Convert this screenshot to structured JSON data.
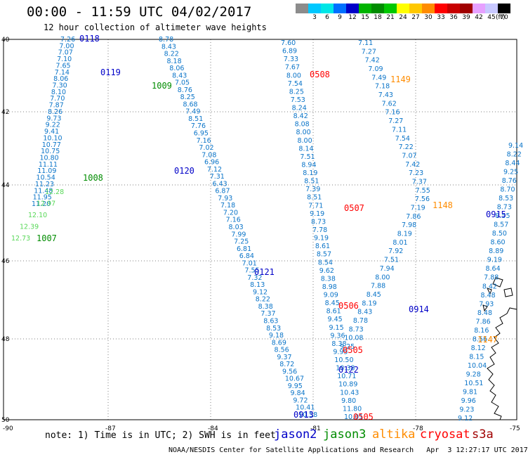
{
  "header": {
    "title": "00:00 - 11:59 UTC 04/02/2017",
    "subtitle": "12 hour collection of altimeter wave heights"
  },
  "colorbar": {
    "unit": "(ft)",
    "levels": [
      {
        "label": "",
        "color": "#8c8c8c"
      },
      {
        "label": "3",
        "color": "#00c8ff"
      },
      {
        "label": "6",
        "color": "#00e6e6"
      },
      {
        "label": "9",
        "color": "#0070ff"
      },
      {
        "label": "12",
        "color": "#0000c8"
      },
      {
        "label": "15",
        "color": "#00b400"
      },
      {
        "label": "18",
        "color": "#008c00"
      },
      {
        "label": "21",
        "color": "#00c800"
      },
      {
        "label": "24",
        "color": "#ffff00"
      },
      {
        "label": "27",
        "color": "#ffc800"
      },
      {
        "label": "30",
        "color": "#ff8c00"
      },
      {
        "label": "33",
        "color": "#ff0000"
      },
      {
        "label": "36",
        "color": "#c80000"
      },
      {
        "label": "39",
        "color": "#a00000"
      },
      {
        "label": "42",
        "color": "#e6a0ff"
      },
      {
        "label": "45",
        "color": "#c8c8ff"
      },
      {
        "label": "70",
        "color": "#000000"
      }
    ]
  },
  "axes": {
    "lat_ticks": [
      "40",
      "42",
      "44",
      "46",
      "48",
      "50"
    ],
    "lon_ticks": [
      "-90",
      "-87",
      "-84",
      "-81",
      "-78",
      "-75"
    ]
  },
  "tracks": [
    {
      "color": "#0000c8",
      "labels": [
        {
          "text": "0118"
        },
        {
          "text": "0119"
        },
        {
          "text": "0120"
        },
        {
          "text": "0121"
        },
        {
          "text": "0122"
        },
        {
          "text": "0913"
        },
        {
          "text": "0914"
        },
        {
          "text": "0915"
        }
      ]
    },
    {
      "color": "#008c00",
      "labels": [
        {
          "text": "1009"
        },
        {
          "text": "1008"
        },
        {
          "text": "1007"
        }
      ]
    },
    {
      "color": "#ff0000",
      "labels": [
        {
          "text": "0508"
        },
        {
          "text": "0507"
        },
        {
          "text": "0506"
        },
        {
          "text": "0505"
        },
        {
          "text": "0505"
        }
      ]
    },
    {
      "color": "#ff8c00",
      "labels": [
        {
          "text": "1149"
        },
        {
          "text": "1148"
        },
        {
          "text": "1147"
        }
      ]
    }
  ],
  "values": {
    "jason2_A": [
      "7.26",
      "7.00",
      "7.07",
      "7.10",
      "7.65",
      "7.14",
      "8.06",
      "7.30",
      "8.10",
      "7.70",
      "7.87",
      "8.26",
      "9.73",
      "9.22",
      "9.41",
      "10.10",
      "10.77",
      "10.75",
      "10.80",
      "11.11",
      "11.09",
      "10.54",
      "11.23",
      "11.48",
      "11.95",
      "11.20"
    ],
    "jason2_B": [
      "8.78",
      "8.43",
      "8.22",
      "8.18",
      "8.06",
      "8.43",
      "7.05",
      "8.76",
      "8.25",
      "8.68",
      "7.49",
      "8.51",
      "7.76",
      "6.95",
      "7.16",
      "7.02",
      "7.08",
      "6.96",
      "7.12",
      "7.31",
      "6.43",
      "6.87",
      "7.93",
      "7.18",
      "7.20",
      "7.16",
      "8.03",
      "7.99",
      "7.25",
      "6.81",
      "6.84",
      "7.01",
      "7.55",
      "7.32",
      "8.13",
      "9.12",
      "8.22",
      "8.38",
      "7.37",
      "8.63",
      "8.53",
      "9.18",
      "8.69",
      "8.56",
      "9.37",
      "8.72",
      "9.56",
      "10.67",
      "9.95",
      "9.84",
      "9.72",
      "10.41",
      "10.58"
    ],
    "jason3": [
      "12.28",
      "12.97",
      "12.10",
      "12.39",
      "12.73"
    ],
    "cryosat_A": [
      "7.60",
      "6.89",
      "7.33",
      "7.67",
      "8.00",
      "7.54",
      "8.25",
      "7.53",
      "8.24",
      "8.42",
      "8.08",
      "8.00",
      "8.00",
      "8.14",
      "7.51",
      "8.94",
      "8.19",
      "8.51",
      "7.39",
      "8.51",
      "7.71",
      "9.19",
      "8.73",
      "7.78",
      "9.19",
      "8.61",
      "8.57",
      "8.54",
      "9.62",
      "8.38",
      "8.98",
      "9.09",
      "8.45",
      "8.61",
      "9.45",
      "9.15",
      "9.36",
      "8.38",
      "9.95",
      "10.50",
      "10.38",
      "10.71",
      "10.89",
      "10.43",
      "9.80",
      "11.80",
      "10.01"
    ],
    "cryosat_B": [
      "7.11",
      "7.27",
      "7.42",
      "7.09",
      "7.49",
      "7.18",
      "7.43",
      "7.62",
      "7.16",
      "7.27",
      "7.11",
      "7.54",
      "7.22",
      "7.07",
      "7.42",
      "7.23",
      "7.37",
      "7.55",
      "7.56",
      "7.19",
      "7.86",
      "7.98",
      "8.19",
      "8.01",
      "7.92",
      "7.51",
      "7.94",
      "8.00",
      "7.88",
      "8.45",
      "8.19",
      "8.43",
      "8.78",
      "8.73",
      "10.08",
      "9.25"
    ],
    "jason2_C": [
      "9.14",
      "8.22",
      "8.44",
      "9.25",
      "8.76",
      "8.70",
      "8.53",
      "8.73",
      "8.55",
      "8.57",
      "8.50",
      "8.60",
      "8.89",
      "9.19",
      "8.64",
      "7.88",
      "8.42",
      "8.48",
      "7.93",
      "8.48",
      "7.86",
      "8.16",
      "8.56",
      "8.12",
      "8.15",
      "10.04",
      "9.28",
      "10.51",
      "9.81",
      "9.96",
      "9.23",
      "9.12"
    ]
  },
  "footer": {
    "note": "note: 1) Time is in UTC; 2) SWH is in feet",
    "satellites": [
      {
        "name": "jason2",
        "color": "#0000c8"
      },
      {
        "name": "jason3",
        "color": "#008c00"
      },
      {
        "name": "altika",
        "color": "#ff8c00"
      },
      {
        "name": "cryosat",
        "color": "#ff0000"
      },
      {
        "name": "s3a",
        "color": "#a00000"
      }
    ],
    "credit": "NOAA/NESDIS Center for Satellite Applications and Research   Apr  3 12:27:17 UTC 2017"
  }
}
